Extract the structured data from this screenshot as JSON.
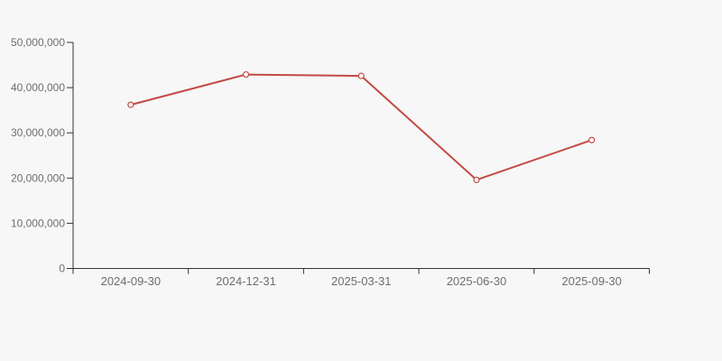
{
  "page": {
    "background_color": "#f7f7f7"
  },
  "chart_data": {
    "type": "line",
    "title": "",
    "xlabel": "",
    "ylabel": "",
    "categories": [
      "2024-09-30",
      "2024-12-31",
      "2025-03-31",
      "2025-06-30",
      "2025-09-30"
    ],
    "series": [
      {
        "name": "series-1",
        "values": [
          36200000,
          42900000,
          42600000,
          19600000,
          28400000
        ]
      }
    ],
    "ylim": [
      0,
      50000000
    ],
    "y_ticks": [
      0,
      10000000,
      20000000,
      30000000,
      40000000,
      50000000
    ],
    "y_tick_labels": [
      "0",
      "10,000,000",
      "20,000,000",
      "30,000,000",
      "40,000,000",
      "50,000,000"
    ],
    "grid": false,
    "legend_position": "none",
    "line_color": "#c34a44",
    "marker_style": "open-circle",
    "marker_fill": "#ffffff",
    "axis_color": "#333333",
    "label_color": "#6e6e6e"
  }
}
